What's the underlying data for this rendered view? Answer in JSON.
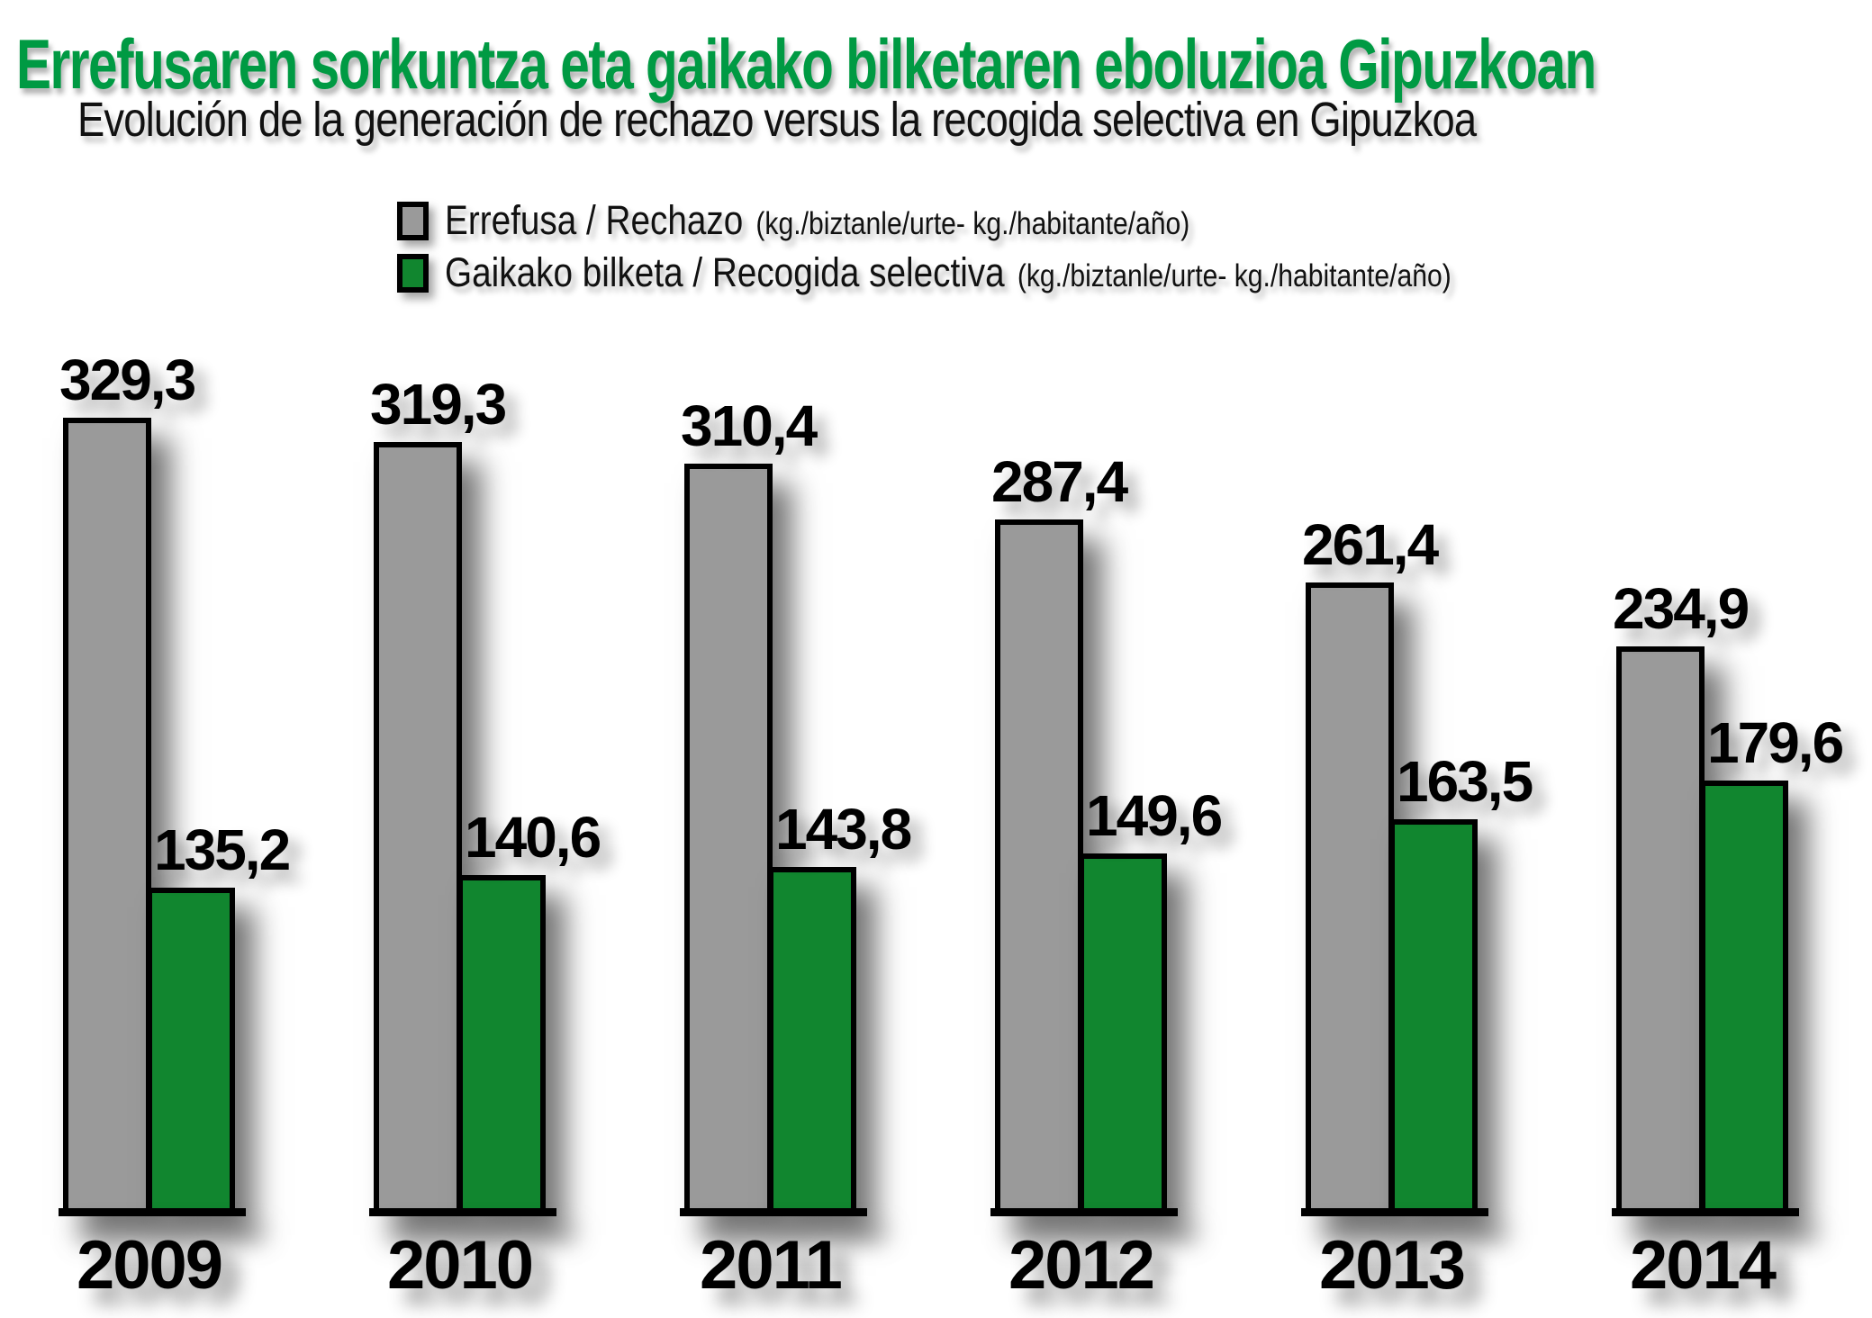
{
  "chart_data": {
    "type": "bar",
    "title": "Errefusaren sorkuntza eta gaikako bilketaren eboluzioa Gipuzkoan",
    "subtitle": "Evolución de la generación de rechazo versus la recogida selectiva en Gipuzkoa",
    "categories": [
      "2009",
      "2010",
      "2011",
      "2012",
      "2013",
      "2014"
    ],
    "series": [
      {
        "name": "Errefusa / Rechazo",
        "units": "(kg./biztanle/urte- kg./habitante/año)",
        "color": "#9a9a9a",
        "values": [
          329.3,
          319.3,
          310.4,
          287.4,
          261.4,
          234.9
        ],
        "labels": [
          "329,3",
          "319,3",
          "310,4",
          "287,4",
          "261,4",
          "234,9"
        ]
      },
      {
        "name": "Gaikako bilketa / Recogida selectiva",
        "units": "(kg./biztanle/urte- kg./habitante/año)",
        "color": "#11862f",
        "values": [
          135.2,
          140.6,
          143.8,
          149.6,
          163.5,
          179.6
        ],
        "labels": [
          "135,2",
          "140,6",
          "143,8",
          "149,6",
          "163,5",
          "179,6"
        ]
      }
    ],
    "ylim": [
      0,
      340
    ],
    "grid": false,
    "axes_visible": false,
    "value_labels_shown": true,
    "decimal_separator": "comma",
    "legend_position": "top-left",
    "colors": {
      "title_green": "#009a43",
      "bar_gray": "#9a9a9a",
      "bar_green": "#11862f",
      "text": "#000000",
      "background": "#ffffff"
    }
  }
}
